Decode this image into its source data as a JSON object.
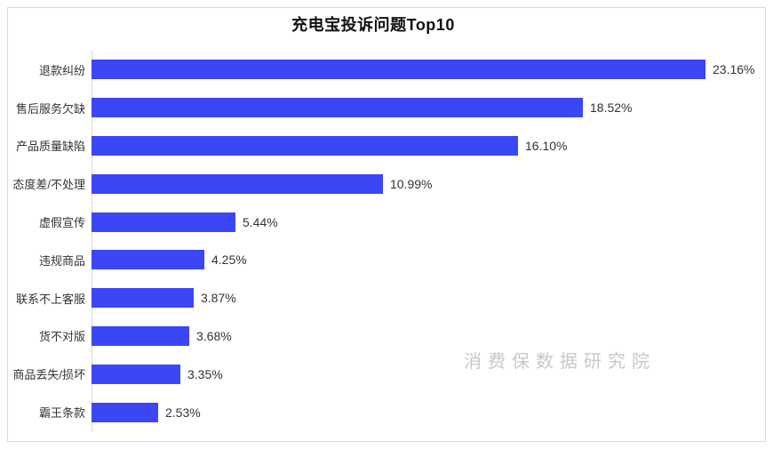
{
  "header": {
    "title": "充电宝投诉问题Top10"
  },
  "watermark": {
    "text": "消费保数据研究院"
  },
  "chart_data": {
    "type": "bar",
    "orientation": "horizontal",
    "title": "充电宝投诉问题Top10",
    "categories": [
      "退款纠纷",
      "售后服务欠缺",
      "产品质量缺陷",
      "态度差/不处理",
      "虚假宣传",
      "违规商品",
      "联系不上客服",
      "货不对版",
      "商品丢失/损坏",
      "霸王条款"
    ],
    "values": [
      23.16,
      18.52,
      16.1,
      10.99,
      5.44,
      4.25,
      3.87,
      3.68,
      3.35,
      2.53
    ],
    "value_labels": [
      "23.16%",
      "18.52%",
      "16.10%",
      "10.99%",
      "5.44%",
      "4.25%",
      "3.87%",
      "3.68%",
      "3.35%",
      "2.53%"
    ],
    "unit": "%",
    "xlabel": "",
    "ylabel": "",
    "xlim": [
      0,
      25
    ],
    "grid": false,
    "legend": false,
    "bar_color": "#3b46f5",
    "axis_color": "#d9d9d9",
    "sort": "descending"
  }
}
